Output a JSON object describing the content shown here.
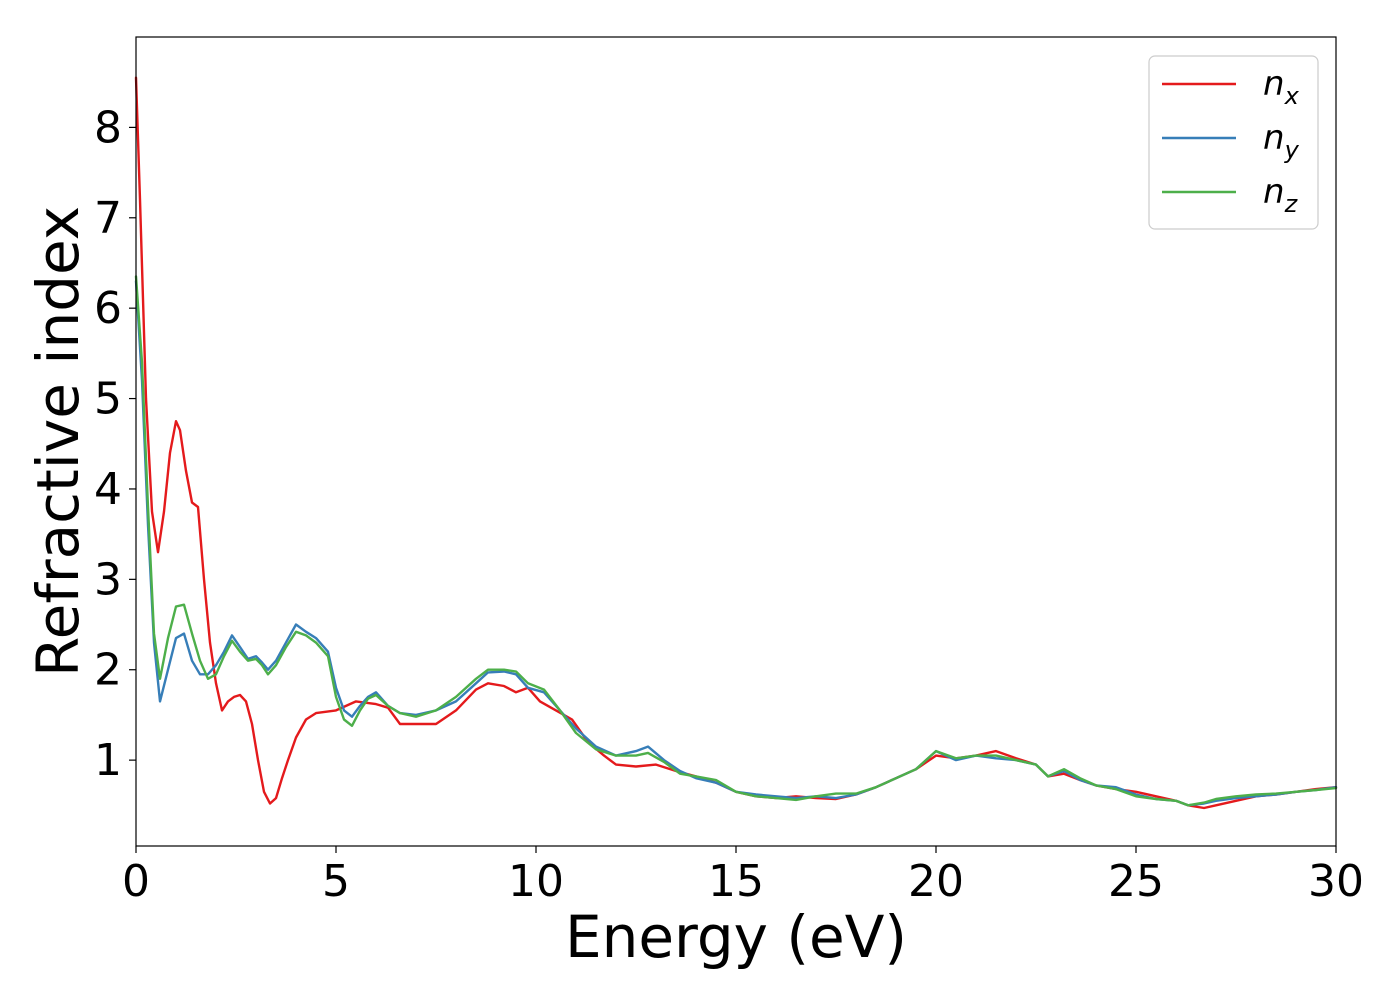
{
  "chart_data": {
    "type": "line",
    "title": "",
    "xlabel": "Energy (eV)",
    "ylabel": "Refractive index",
    "xlim": [
      0,
      30
    ],
    "ylim": [
      0.05,
      9.0
    ],
    "xticks": [
      0,
      5,
      10,
      15,
      20,
      25,
      30
    ],
    "yticks": [
      1,
      2,
      3,
      4,
      5,
      6,
      7,
      8
    ],
    "grid": false,
    "legend_position": "top-right",
    "series": [
      {
        "name": "n",
        "subscript": "x",
        "color": "#e41a1c",
        "x": [
          0.0,
          0.1,
          0.25,
          0.4,
          0.55,
          0.7,
          0.85,
          1.0,
          1.1,
          1.25,
          1.4,
          1.55,
          1.7,
          1.85,
          2.0,
          2.15,
          2.3,
          2.45,
          2.6,
          2.75,
          2.9,
          3.05,
          3.2,
          3.35,
          3.5,
          3.65,
          3.8,
          4.0,
          4.25,
          4.5,
          5.0,
          5.5,
          6.0,
          6.3,
          6.6,
          7.0,
          7.5,
          8.0,
          8.5,
          8.8,
          9.2,
          9.5,
          9.8,
          10.1,
          10.5,
          10.9,
          11.3,
          11.7,
          12.0,
          12.5,
          13.0,
          13.5,
          14.0,
          14.5,
          15.0,
          15.5,
          16.0,
          16.5,
          17.0,
          17.5,
          18.0,
          18.5,
          19.0,
          19.5,
          20.0,
          20.5,
          21.0,
          21.5,
          22.0,
          22.5,
          22.8,
          23.2,
          23.6,
          24.0,
          24.5,
          25.0,
          25.5,
          26.0,
          26.3,
          26.7,
          27.0,
          27.5,
          28.0,
          28.5,
          29.0,
          29.5,
          30.0
        ],
        "y": [
          8.55,
          7.2,
          5.0,
          3.75,
          3.3,
          3.75,
          4.4,
          4.75,
          4.65,
          4.2,
          3.85,
          3.8,
          3.0,
          2.3,
          1.85,
          1.55,
          1.65,
          1.7,
          1.72,
          1.65,
          1.4,
          1.0,
          0.65,
          0.52,
          0.58,
          0.8,
          1.0,
          1.25,
          1.45,
          1.52,
          1.55,
          1.65,
          1.62,
          1.58,
          1.4,
          1.4,
          1.4,
          1.55,
          1.78,
          1.85,
          1.82,
          1.75,
          1.8,
          1.65,
          1.55,
          1.45,
          1.2,
          1.05,
          0.95,
          0.93,
          0.95,
          0.88,
          0.82,
          0.75,
          0.65,
          0.6,
          0.58,
          0.6,
          0.58,
          0.57,
          0.62,
          0.7,
          0.8,
          0.9,
          1.05,
          1.02,
          1.05,
          1.1,
          1.02,
          0.95,
          0.82,
          0.85,
          0.78,
          0.72,
          0.68,
          0.65,
          0.6,
          0.55,
          0.5,
          0.47,
          0.5,
          0.55,
          0.6,
          0.62,
          0.65,
          0.68,
          0.7
        ]
      },
      {
        "name": "n",
        "subscript": "y",
        "color": "#377eb8",
        "x": [
          0.0,
          0.15,
          0.3,
          0.45,
          0.6,
          0.8,
          1.0,
          1.2,
          1.4,
          1.6,
          1.8,
          2.0,
          2.2,
          2.4,
          2.6,
          2.8,
          3.0,
          3.15,
          3.3,
          3.5,
          3.75,
          4.0,
          4.25,
          4.5,
          4.8,
          5.0,
          5.2,
          5.4,
          5.6,
          5.8,
          6.0,
          6.3,
          6.6,
          7.0,
          7.5,
          8.0,
          8.5,
          8.8,
          9.2,
          9.5,
          9.8,
          10.2,
          10.6,
          11.0,
          11.5,
          12.0,
          12.5,
          12.8,
          13.2,
          13.6,
          14.0,
          14.5,
          15.0,
          15.5,
          16.0,
          16.5,
          17.0,
          17.5,
          18.0,
          18.5,
          19.0,
          19.5,
          20.0,
          20.5,
          21.0,
          21.5,
          22.0,
          22.5,
          22.8,
          23.2,
          23.6,
          24.0,
          24.5,
          25.0,
          25.5,
          26.0,
          26.3,
          26.7,
          27.0,
          27.5,
          28.0,
          28.5,
          29.0,
          29.5,
          30.0
        ],
        "y": [
          6.3,
          5.2,
          3.6,
          2.3,
          1.65,
          2.0,
          2.35,
          2.4,
          2.1,
          1.95,
          1.95,
          2.05,
          2.2,
          2.38,
          2.25,
          2.12,
          2.15,
          2.08,
          2.0,
          2.1,
          2.3,
          2.5,
          2.42,
          2.35,
          2.2,
          1.8,
          1.55,
          1.48,
          1.6,
          1.7,
          1.75,
          1.6,
          1.52,
          1.5,
          1.55,
          1.65,
          1.85,
          1.97,
          1.98,
          1.95,
          1.8,
          1.75,
          1.55,
          1.35,
          1.15,
          1.05,
          1.1,
          1.15,
          1.0,
          0.88,
          0.8,
          0.75,
          0.65,
          0.62,
          0.6,
          0.58,
          0.6,
          0.58,
          0.62,
          0.7,
          0.8,
          0.9,
          1.1,
          1.0,
          1.05,
          1.02,
          1.0,
          0.95,
          0.82,
          0.88,
          0.78,
          0.72,
          0.7,
          0.62,
          0.57,
          0.55,
          0.5,
          0.52,
          0.55,
          0.58,
          0.6,
          0.62,
          0.65,
          0.67,
          0.7
        ]
      },
      {
        "name": "n",
        "subscript": "z",
        "color": "#4daf4a",
        "x": [
          0.0,
          0.15,
          0.3,
          0.45,
          0.6,
          0.8,
          1.0,
          1.2,
          1.4,
          1.6,
          1.8,
          2.0,
          2.2,
          2.4,
          2.6,
          2.8,
          3.0,
          3.15,
          3.3,
          3.5,
          3.75,
          4.0,
          4.25,
          4.5,
          4.8,
          5.0,
          5.2,
          5.4,
          5.6,
          5.8,
          6.0,
          6.3,
          6.6,
          7.0,
          7.5,
          8.0,
          8.5,
          8.8,
          9.2,
          9.5,
          9.8,
          10.2,
          10.6,
          11.0,
          11.5,
          12.0,
          12.5,
          12.8,
          13.2,
          13.6,
          14.0,
          14.5,
          15.0,
          15.5,
          16.0,
          16.5,
          17.0,
          17.5,
          18.0,
          18.5,
          19.0,
          19.5,
          20.0,
          20.5,
          21.0,
          21.5,
          22.0,
          22.5,
          22.8,
          23.2,
          23.6,
          24.0,
          24.5,
          25.0,
          25.5,
          26.0,
          26.3,
          26.7,
          27.0,
          27.5,
          28.0,
          28.5,
          29.0,
          29.5,
          30.0
        ],
        "y": [
          6.35,
          5.4,
          3.8,
          2.4,
          1.9,
          2.35,
          2.7,
          2.72,
          2.4,
          2.1,
          1.9,
          1.95,
          2.15,
          2.32,
          2.2,
          2.1,
          2.12,
          2.05,
          1.95,
          2.05,
          2.25,
          2.42,
          2.38,
          2.3,
          2.15,
          1.7,
          1.45,
          1.38,
          1.55,
          1.68,
          1.72,
          1.6,
          1.52,
          1.48,
          1.55,
          1.7,
          1.9,
          2.0,
          2.0,
          1.98,
          1.85,
          1.78,
          1.55,
          1.3,
          1.12,
          1.05,
          1.05,
          1.08,
          0.98,
          0.85,
          0.82,
          0.78,
          0.65,
          0.6,
          0.58,
          0.56,
          0.6,
          0.63,
          0.63,
          0.7,
          0.8,
          0.9,
          1.1,
          1.02,
          1.05,
          1.05,
          1.0,
          0.95,
          0.82,
          0.9,
          0.8,
          0.72,
          0.68,
          0.6,
          0.57,
          0.55,
          0.5,
          0.53,
          0.57,
          0.6,
          0.62,
          0.63,
          0.65,
          0.67,
          0.69
        ]
      }
    ]
  }
}
